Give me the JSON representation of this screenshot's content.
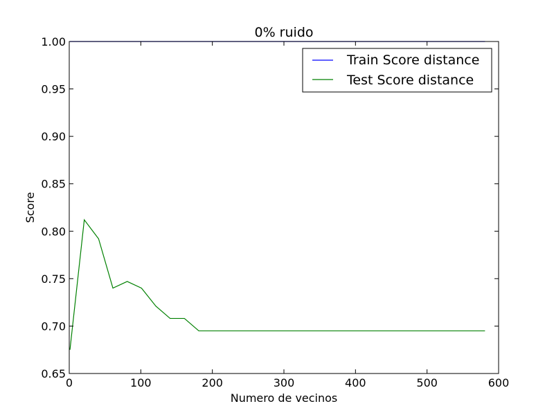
{
  "chart_data": {
    "type": "line",
    "title": "0% ruido",
    "xlabel": "Numero de vecinos",
    "ylabel": "Score",
    "xlim": [
      0,
      600
    ],
    "ylim": [
      0.65,
      1.0
    ],
    "grid": false,
    "legend_position": "top-right",
    "x_ticks": [
      0,
      100,
      200,
      300,
      400,
      500,
      600
    ],
    "x_tick_labels": [
      "0",
      "100",
      "200",
      "300",
      "400",
      "500",
      "600"
    ],
    "y_ticks": [
      0.65,
      0.7,
      0.75,
      0.8,
      0.85,
      0.9,
      0.95,
      1.0
    ],
    "y_tick_labels": [
      "0.65",
      "0.70",
      "0.75",
      "0.80",
      "0.85",
      "0.90",
      "0.95",
      "1.00"
    ],
    "x": [
      1,
      21,
      41,
      61,
      81,
      101,
      121,
      141,
      161,
      181,
      201,
      221,
      241,
      261,
      281,
      301,
      321,
      341,
      361,
      381,
      401,
      421,
      441,
      461,
      481,
      501,
      521,
      541,
      561,
      581
    ],
    "series": [
      {
        "name": "Train Score distance",
        "color": "#0000ff",
        "values": [
          1.0,
          1.0,
          1.0,
          1.0,
          1.0,
          1.0,
          1.0,
          1.0,
          1.0,
          1.0,
          1.0,
          1.0,
          1.0,
          1.0,
          1.0,
          1.0,
          1.0,
          1.0,
          1.0,
          1.0,
          1.0,
          1.0,
          1.0,
          1.0,
          1.0,
          1.0,
          1.0,
          1.0,
          1.0,
          1.0
        ]
      },
      {
        "name": "Test Score distance",
        "color": "#008000",
        "values": [
          0.675,
          0.812,
          0.792,
          0.74,
          0.747,
          0.74,
          0.721,
          0.708,
          0.708,
          0.695,
          0.695,
          0.695,
          0.695,
          0.695,
          0.695,
          0.695,
          0.695,
          0.695,
          0.695,
          0.695,
          0.695,
          0.695,
          0.695,
          0.695,
          0.695,
          0.695,
          0.695,
          0.695,
          0.695,
          0.695
        ]
      }
    ]
  }
}
